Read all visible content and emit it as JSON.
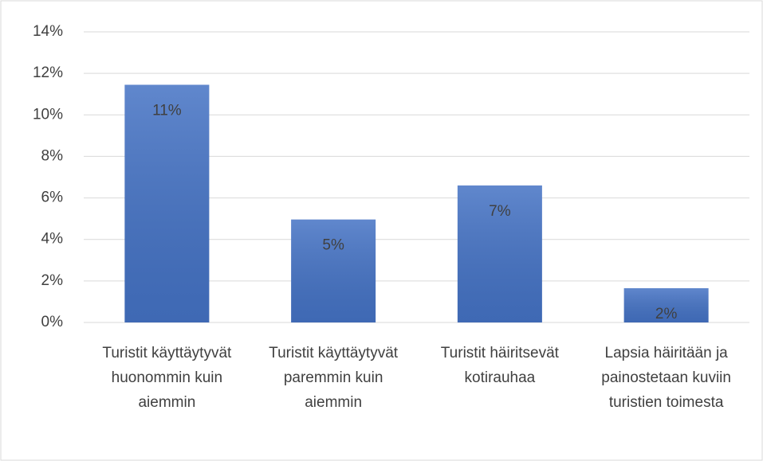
{
  "chart_data": {
    "type": "bar",
    "categories": [
      "Turistit käyttäytyvät huonommin kuin aiemmin",
      "Turistit käyttäytyvät paremmin kuin aiemmin",
      "Turistit häiritsevät kotirauhaa",
      "Lapsia häiritään ja painostetaan kuviin turistien toimesta"
    ],
    "values": [
      11.45,
      4.96,
      6.6,
      1.65
    ],
    "value_labels": [
      "11%",
      "5%",
      "7%",
      "2%"
    ],
    "color": "#4472c4",
    "ylim": [
      0,
      14
    ],
    "yticks": [
      {
        "value": 0,
        "label": "0%"
      },
      {
        "value": 2,
        "label": "2%"
      },
      {
        "value": 4,
        "label": "4%"
      },
      {
        "value": 6,
        "label": "6%"
      },
      {
        "value": 8,
        "label": "8%"
      },
      {
        "value": 10,
        "label": "10%"
      },
      {
        "value": 12,
        "label": "12%"
      },
      {
        "value": 14,
        "label": "14%"
      }
    ],
    "grid": true
  }
}
